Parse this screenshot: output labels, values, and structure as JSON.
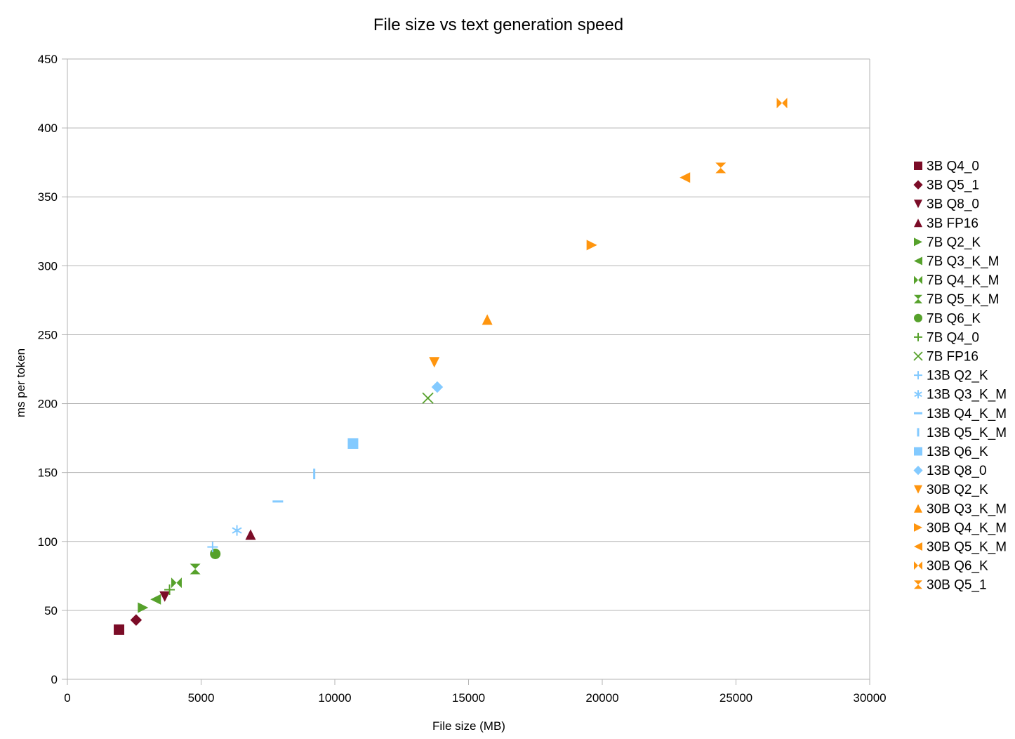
{
  "chart_data": {
    "type": "scatter",
    "title": "File size vs text generation speed",
    "xlabel": "File size (MB)",
    "ylabel": "ms per token",
    "xlim": [
      0,
      30000
    ],
    "ylim": [
      0,
      450
    ],
    "xticks": [
      0,
      5000,
      10000,
      15000,
      20000,
      25000,
      30000
    ],
    "yticks": [
      0,
      50,
      100,
      150,
      200,
      250,
      300,
      350,
      400,
      450
    ],
    "grid": "horizontal",
    "legend_position": "right",
    "series": [
      {
        "name": "3B Q4_0",
        "color": "#7b0c27",
        "marker": "square",
        "points": [
          [
            1930,
            36
          ]
        ]
      },
      {
        "name": "3B Q5_1",
        "color": "#7b0c27",
        "marker": "diamond",
        "points": [
          [
            2570,
            43
          ]
        ]
      },
      {
        "name": "3B Q8_0",
        "color": "#7b0c27",
        "marker": "triangle-down",
        "points": [
          [
            3640,
            60
          ]
        ]
      },
      {
        "name": "3B FP16",
        "color": "#7b0c27",
        "marker": "triangle-up",
        "points": [
          [
            6850,
            105
          ]
        ]
      },
      {
        "name": "7B Q2_K",
        "color": "#56a12b",
        "marker": "triangle-right",
        "points": [
          [
            2830,
            52
          ]
        ]
      },
      {
        "name": "7B Q3_K_M",
        "color": "#56a12b",
        "marker": "triangle-left",
        "points": [
          [
            3300,
            58
          ]
        ]
      },
      {
        "name": "7B Q4_K_M",
        "color": "#56a12b",
        "marker": "bowtie",
        "points": [
          [
            4080,
            70
          ]
        ]
      },
      {
        "name": "7B Q5_K_M",
        "color": "#56a12b",
        "marker": "hourglass",
        "points": [
          [
            4780,
            80
          ]
        ]
      },
      {
        "name": "7B Q6_K",
        "color": "#56a12b",
        "marker": "circle",
        "points": [
          [
            5530,
            91
          ]
        ]
      },
      {
        "name": "7B Q4_0",
        "color": "#56a12b",
        "marker": "plus",
        "points": [
          [
            3820,
            65
          ]
        ]
      },
      {
        "name": "7B FP16",
        "color": "#56a12b",
        "marker": "x",
        "points": [
          [
            13480,
            204
          ]
        ]
      },
      {
        "name": "13B Q2_K",
        "color": "#83caff",
        "marker": "plus",
        "points": [
          [
            5430,
            96
          ]
        ]
      },
      {
        "name": "13B Q3_K_M",
        "color": "#83caff",
        "marker": "asterisk",
        "points": [
          [
            6340,
            108
          ]
        ]
      },
      {
        "name": "13B Q4_K_M",
        "color": "#83caff",
        "marker": "dash",
        "points": [
          [
            7870,
            129
          ]
        ]
      },
      {
        "name": "13B Q5_K_M",
        "color": "#83caff",
        "marker": "vbar",
        "points": [
          [
            9230,
            149
          ]
        ]
      },
      {
        "name": "13B Q6_K",
        "color": "#83caff",
        "marker": "square",
        "points": [
          [
            10680,
            171
          ]
        ]
      },
      {
        "name": "13B Q8_0",
        "color": "#83caff",
        "marker": "diamond",
        "points": [
          [
            13830,
            212
          ]
        ]
      },
      {
        "name": "30B Q2_K",
        "color": "#ff950e",
        "marker": "triangle-down",
        "points": [
          [
            13720,
            230
          ]
        ]
      },
      {
        "name": "30B Q3_K_M",
        "color": "#ff950e",
        "marker": "triangle-up",
        "points": [
          [
            15700,
            261
          ]
        ]
      },
      {
        "name": "30B Q4_K_M",
        "color": "#ff950e",
        "marker": "triangle-right",
        "points": [
          [
            19610,
            315
          ]
        ]
      },
      {
        "name": "30B Q5_K_M",
        "color": "#ff950e",
        "marker": "triangle-left",
        "points": [
          [
            23090,
            364
          ]
        ]
      },
      {
        "name": "30B Q6_K",
        "color": "#ff950e",
        "marker": "bowtie",
        "points": [
          [
            26720,
            418
          ]
        ]
      },
      {
        "name": "30B Q5_1",
        "color": "#ff950e",
        "marker": "hourglass",
        "points": [
          [
            24430,
            371
          ]
        ]
      }
    ]
  }
}
